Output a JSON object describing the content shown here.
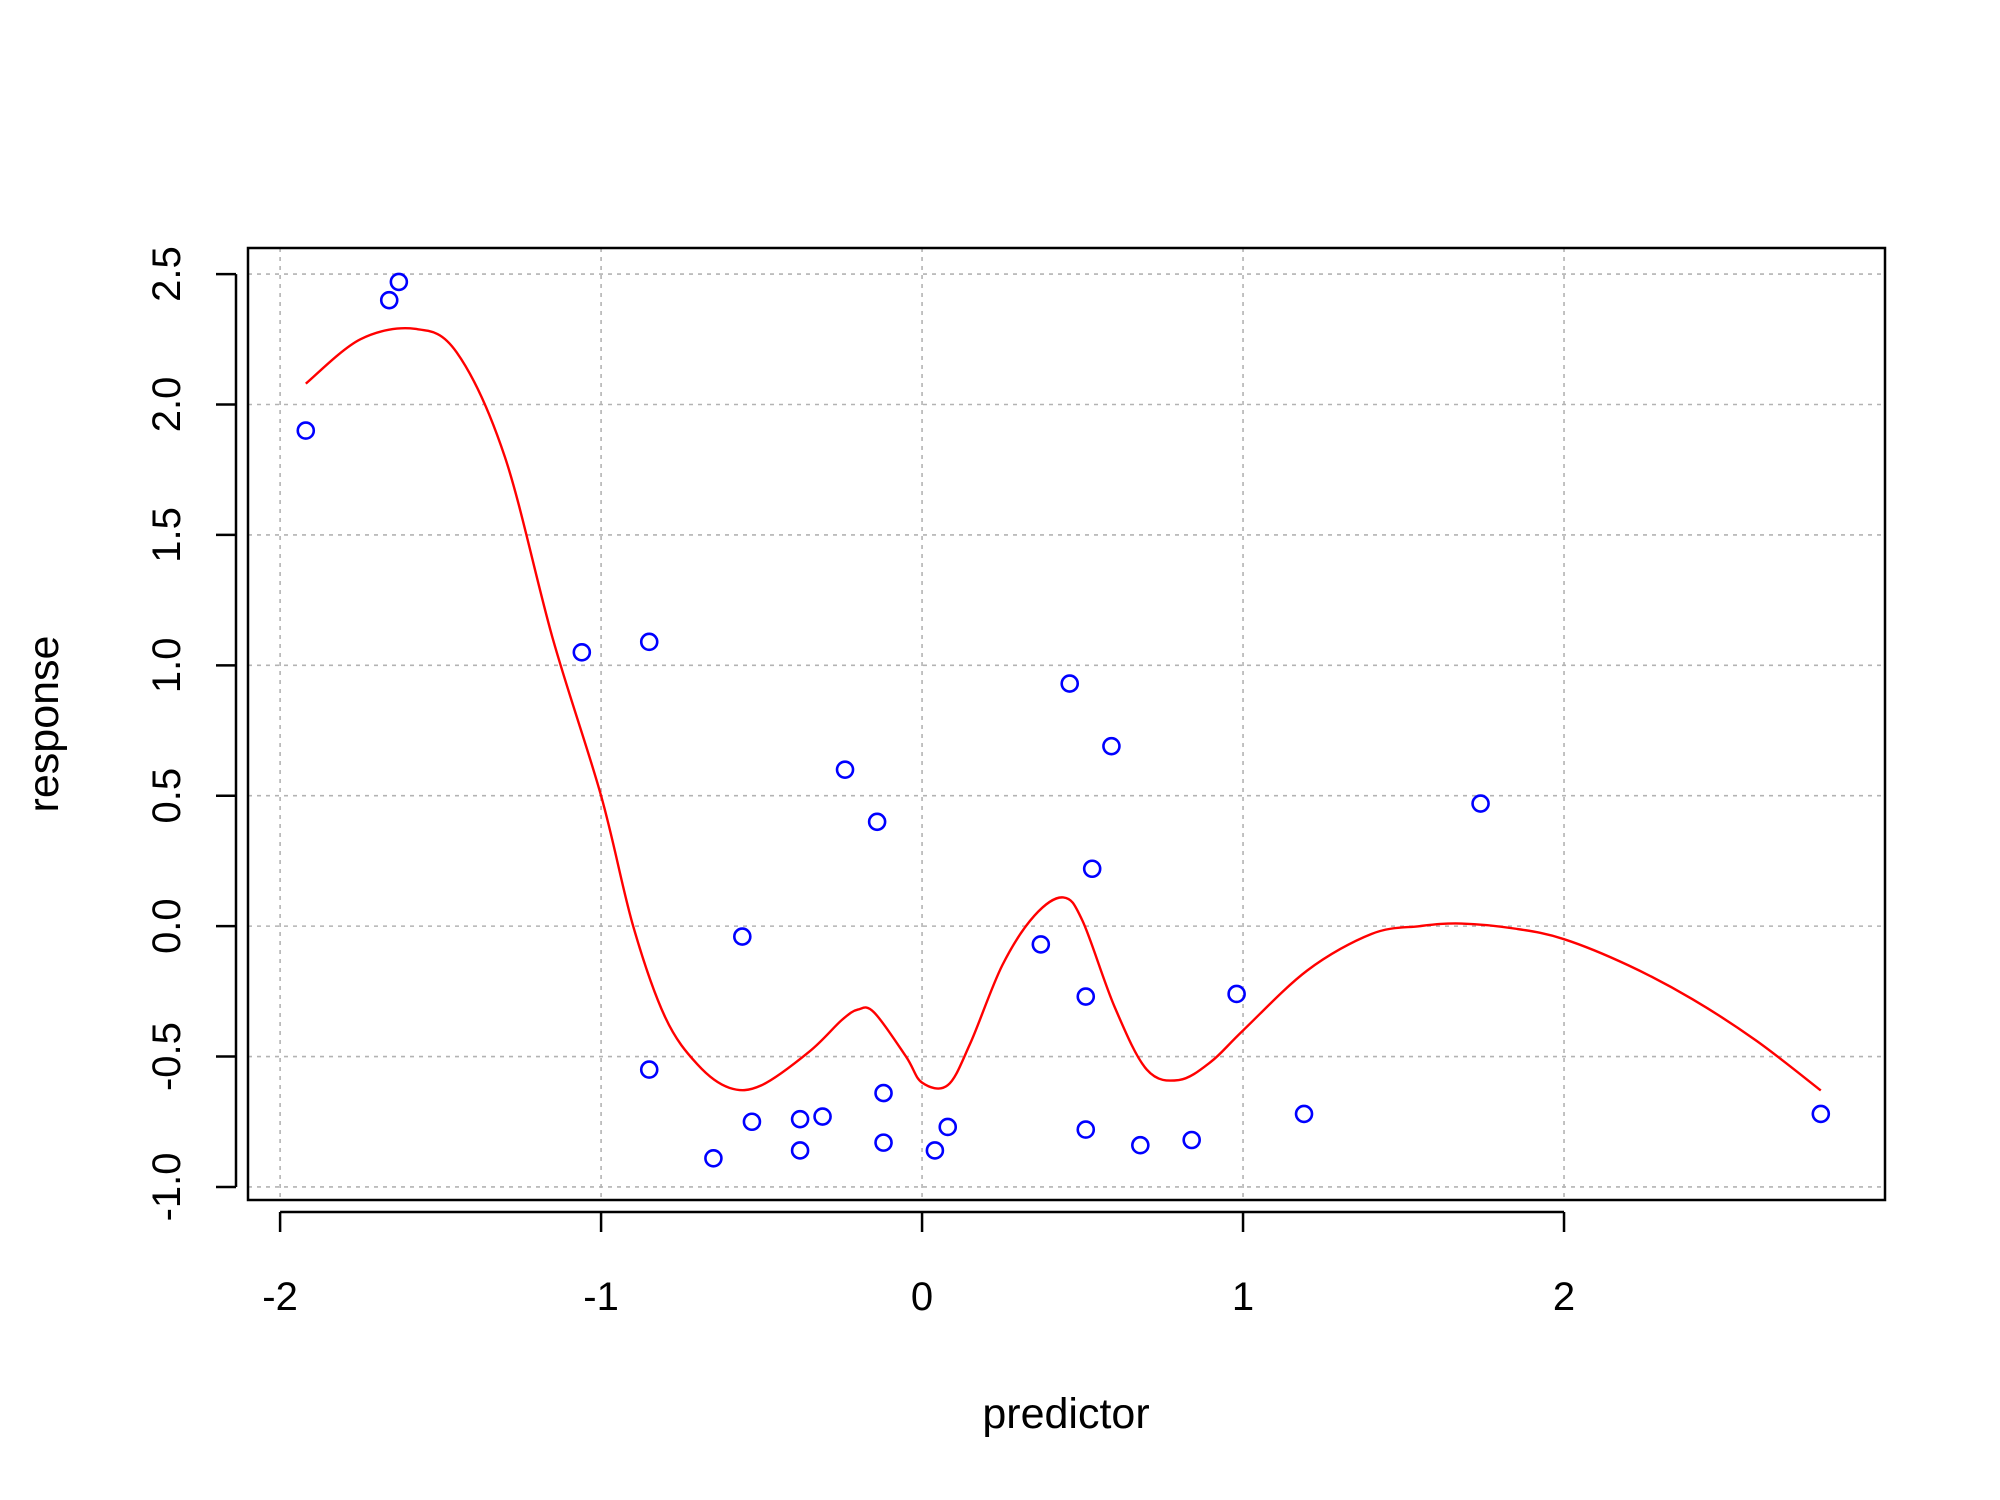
{
  "chart_data": {
    "type": "scatter",
    "title": "",
    "xlabel": "predictor",
    "ylabel": "response",
    "xlim": [
      -2.1,
      3.0
    ],
    "ylim": [
      -1.05,
      2.6
    ],
    "xticks": [
      -2,
      -1,
      0,
      1,
      2
    ],
    "xtick_labels": [
      "-2",
      "-1",
      "0",
      "1",
      "2"
    ],
    "yticks": [
      -1.0,
      -0.5,
      0.0,
      0.5,
      1.0,
      1.5,
      2.0,
      2.5
    ],
    "ytick_labels": [
      "-1.0",
      "-0.5",
      "0.0",
      "0.5",
      "1.0",
      "1.5",
      "2.0",
      "2.5"
    ],
    "grid": true,
    "legend": "none",
    "colors": {
      "points": "#0000ff",
      "curve": "#ff0000",
      "grid": "#b3b3b3",
      "axes": "#000000"
    },
    "series": [
      {
        "type": "scatter",
        "x": [
          -1.92,
          -1.66,
          -1.63,
          -1.06,
          -0.85,
          -0.85,
          -0.65,
          -0.56,
          -0.53,
          -0.38,
          -0.38,
          -0.31,
          -0.24,
          -0.14,
          -0.12,
          -0.12,
          0.04,
          0.08,
          0.37,
          0.46,
          0.51,
          0.51,
          0.53,
          0.59,
          0.68,
          0.84,
          0.98,
          1.19,
          1.74,
          2.8
        ],
        "y": [
          1.9,
          2.4,
          2.47,
          1.05,
          1.09,
          -0.55,
          -0.89,
          -0.04,
          -0.75,
          -0.74,
          -0.86,
          -0.73,
          0.6,
          0.4,
          -0.64,
          -0.83,
          -0.86,
          -0.77,
          -0.07,
          0.93,
          -0.27,
          -0.78,
          0.22,
          0.69,
          -0.84,
          -0.82,
          -0.26,
          -0.72,
          0.47,
          -0.72
        ]
      },
      {
        "type": "line",
        "x": [
          -1.92,
          -1.75,
          -1.58,
          -1.45,
          -1.3,
          -1.15,
          -1.0,
          -0.9,
          -0.8,
          -0.7,
          -0.6,
          -0.5,
          -0.35,
          -0.25,
          -0.2,
          -0.15,
          -0.05,
          0.0,
          0.08,
          0.15,
          0.25,
          0.35,
          0.44,
          0.5,
          0.6,
          0.7,
          0.8,
          0.9,
          1.0,
          1.2,
          1.4,
          1.55,
          1.68,
          1.85,
          2.0,
          2.2,
          2.4,
          2.6,
          2.8
        ],
        "y": [
          2.08,
          2.25,
          2.29,
          2.2,
          1.8,
          1.1,
          0.5,
          0.0,
          -0.35,
          -0.53,
          -0.62,
          -0.61,
          -0.48,
          -0.36,
          -0.32,
          -0.33,
          -0.5,
          -0.6,
          -0.61,
          -0.45,
          -0.15,
          0.04,
          0.11,
          0.02,
          -0.31,
          -0.55,
          -0.59,
          -0.52,
          -0.4,
          -0.17,
          -0.03,
          0.0,
          0.01,
          -0.01,
          -0.05,
          -0.15,
          -0.28,
          -0.44,
          -0.63
        ]
      }
    ]
  }
}
